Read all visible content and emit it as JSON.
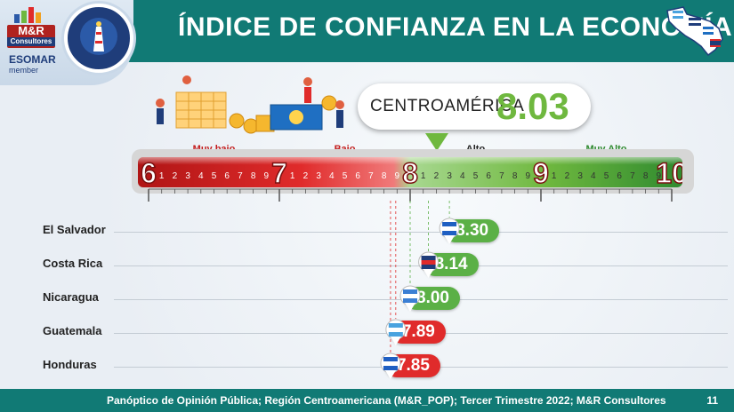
{
  "header": {
    "title": "ÍNDICE DE CONFIANZA EN LA ECONOMÍA",
    "logo_text": "M&R",
    "logo_sub": "Consultores",
    "esomar": "ESOMAR",
    "member": "member"
  },
  "summary": {
    "label": "CENTROAMÉRICA",
    "value": "8.03"
  },
  "footer": {
    "source": "Panóptico de Opinión Pública; Región Centroamericana (M&R_POP); Tercer Trimestre 2022; M&R Consultores",
    "page": "11"
  },
  "colors": {
    "header": "#117a75",
    "red": "#e02b2b",
    "green": "#5bb046",
    "dark_red": "#b0221f"
  },
  "chart_data": {
    "type": "scatter",
    "scale": {
      "min": 6,
      "max": 10,
      "major_ticks": [
        "6",
        "7",
        "8",
        "9",
        "10"
      ],
      "minor_ticks": [
        "1",
        "2",
        "3",
        "4",
        "5",
        "6",
        "7",
        "8",
        "9"
      ],
      "categories": [
        {
          "label": "Muy bajo",
          "from": 6,
          "to": 7,
          "color": "#c31d1d"
        },
        {
          "label": "Bajo",
          "from": 7,
          "to": 8,
          "color": "#c31d1d"
        },
        {
          "label": "Alto",
          "from": 8,
          "to": 9,
          "color": "#222222"
        },
        {
          "label": "Muy Alto",
          "from": 9,
          "to": 10,
          "color": "#2f8a2f"
        }
      ]
    },
    "overall": {
      "name": "CENTROAMÉRICA",
      "value": 8.03
    },
    "rows": [
      {
        "country": "El Salvador",
        "value": 8.3,
        "display": "8.30",
        "color": "#5bb046"
      },
      {
        "country": "Costa Rica",
        "value": 8.14,
        "display": "8.14",
        "color": "#5bb046"
      },
      {
        "country": "Nicaragua",
        "value": 8.0,
        "display": "8.00",
        "color": "#5bb046"
      },
      {
        "country": "Guatemala",
        "value": 7.89,
        "display": "7.89",
        "color": "#e02b2b"
      },
      {
        "country": "Honduras",
        "value": 7.85,
        "display": "7.85",
        "color": "#e02b2b"
      }
    ]
  }
}
